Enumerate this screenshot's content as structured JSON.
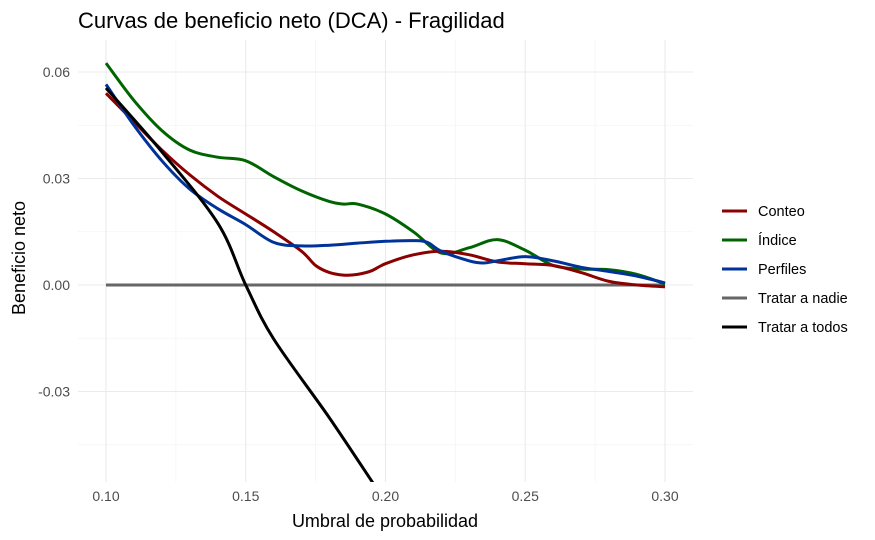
{
  "chart_data": {
    "type": "line",
    "title": "Curvas de beneficio neto (DCA) - Fragilidad",
    "xlabel": "Umbral de probabilidad",
    "ylabel": "Beneficio neto",
    "xlim": [
      0.1,
      0.3
    ],
    "ylim": [
      -0.056,
      0.064
    ],
    "x_ticks": [
      0.1,
      0.15,
      0.2,
      0.25,
      0.3
    ],
    "x_tick_labels": [
      "0.10",
      "0.15",
      "0.20",
      "0.25",
      "0.30"
    ],
    "y_ticks": [
      -0.03,
      0.0,
      0.03,
      0.06
    ],
    "y_tick_labels": [
      "-0.03",
      "0.00",
      "0.03",
      "0.06"
    ],
    "grid": true,
    "legend_position": "right",
    "series": [
      {
        "name": "Conteo",
        "color": "#8b0000",
        "x": [
          0.1,
          0.11,
          0.12,
          0.13,
          0.14,
          0.15,
          0.16,
          0.17,
          0.175,
          0.18,
          0.185,
          0.19,
          0.195,
          0.2,
          0.21,
          0.22,
          0.23,
          0.24,
          0.25,
          0.26,
          0.27,
          0.28,
          0.29,
          0.3
        ],
        "y": [
          0.054,
          0.046,
          0.038,
          0.031,
          0.025,
          0.02,
          0.015,
          0.0095,
          0.0055,
          0.0035,
          0.0028,
          0.003,
          0.004,
          0.006,
          0.0085,
          0.0095,
          0.0085,
          0.0065,
          0.006,
          0.0055,
          0.0035,
          0.001,
          0.0,
          -0.0005
        ]
      },
      {
        "name": "Índice",
        "color": "#006400",
        "x": [
          0.1,
          0.11,
          0.12,
          0.13,
          0.14,
          0.15,
          0.16,
          0.17,
          0.18,
          0.185,
          0.19,
          0.2,
          0.21,
          0.22,
          0.23,
          0.24,
          0.25,
          0.26,
          0.27,
          0.28,
          0.29,
          0.3
        ],
        "y": [
          0.0625,
          0.052,
          0.0435,
          0.038,
          0.036,
          0.035,
          0.0305,
          0.0265,
          0.0235,
          0.0228,
          0.0228,
          0.02,
          0.015,
          0.009,
          0.0105,
          0.0128,
          0.0098,
          0.0055,
          0.0045,
          0.0043,
          0.003,
          0.0003
        ]
      },
      {
        "name": "Perfiles",
        "color": "#003399",
        "x": [
          0.1,
          0.11,
          0.12,
          0.13,
          0.14,
          0.15,
          0.16,
          0.17,
          0.18,
          0.19,
          0.2,
          0.21,
          0.215,
          0.22,
          0.23,
          0.235,
          0.24,
          0.25,
          0.26,
          0.27,
          0.28,
          0.29,
          0.3
        ],
        "y": [
          0.0565,
          0.045,
          0.035,
          0.027,
          0.0215,
          0.017,
          0.012,
          0.011,
          0.0112,
          0.0118,
          0.0123,
          0.0125,
          0.012,
          0.0095,
          0.0068,
          0.0062,
          0.0068,
          0.008,
          0.0068,
          0.005,
          0.0038,
          0.0025,
          0.0006
        ]
      },
      {
        "name": "Tratar a nadie",
        "color": "#666666",
        "x": [
          0.1,
          0.3
        ],
        "y": [
          0.0,
          0.0
        ]
      },
      {
        "name": "Tratar a todos",
        "color": "#000000",
        "x": [
          0.1,
          0.12,
          0.14,
          0.15,
          0.16,
          0.18,
          0.1957
        ],
        "y": [
          0.0555,
          0.0375,
          0.0174,
          0.0,
          -0.0152,
          -0.0375,
          -0.056
        ]
      }
    ]
  }
}
